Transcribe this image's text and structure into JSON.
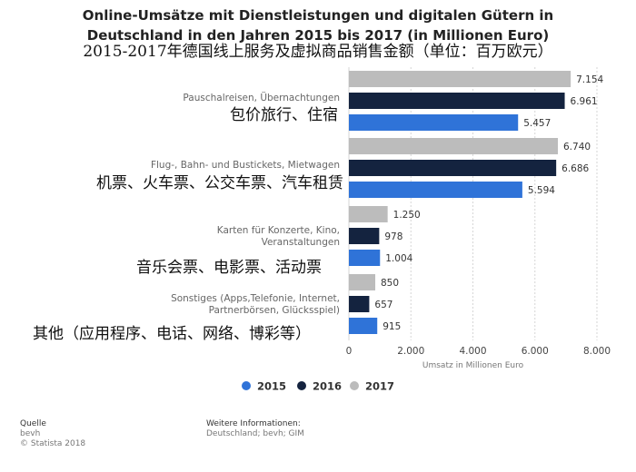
{
  "title": {
    "line1": "Online-Umsätze mit Dienstleistungen und digitalen Gütern in",
    "line2": "Deutschland in den Jahren 2015 bis 2017 (in Millionen Euro)",
    "chinese": "2015-2017年德国线上服务及虚拟商品销售金额（单位：百万欧元）"
  },
  "chart_data": {
    "type": "bar",
    "orientation": "horizontal",
    "categories": [
      "Pauschalreisen, Übernachtungen",
      "Flug-, Bahn- und Bustickets, Mietwagen",
      "Karten für Konzerte, Kino, Veranstaltungen",
      "Sonstiges (Apps,Telefonie, Internet, Partnerbörsen, Glücksspiel)"
    ],
    "category_label_lines": [
      [
        "Pauschalreisen, Übernachtungen"
      ],
      [
        "Flug-, Bahn- und Bustickets, Mietwagen"
      ],
      [
        "Karten für Konzerte, Kino,",
        "Veranstaltungen"
      ],
      [
        "Sonstiges (Apps,Telefonie, Internet,",
        "Partnerbörsen, Glücksspiel)"
      ]
    ],
    "category_translations": [
      "包价旅行、住宿",
      "机票、火车票、公交车票、汽车租赁",
      "音乐会票、电影票、活动票",
      "其他（应用程序、电话、网络、博彩等）"
    ],
    "series": [
      {
        "name": "2017",
        "color": "#bcbcbc",
        "values": [
          7154,
          6740,
          1250,
          850
        ],
        "labels": [
          "7.154",
          "6.740",
          "1.250",
          "850"
        ]
      },
      {
        "name": "2016",
        "color": "#14233f",
        "values": [
          6961,
          6686,
          978,
          657
        ],
        "labels": [
          "6.961",
          "6.686",
          "978",
          "657"
        ]
      },
      {
        "name": "2015",
        "color": "#2f73d8",
        "values": [
          5457,
          5594,
          1004,
          915
        ],
        "labels": [
          "5.457",
          "5.594",
          "1.004",
          "915"
        ]
      }
    ],
    "xlim": [
      0,
      8000
    ],
    "xticks": [
      0,
      2000,
      4000,
      6000,
      8000
    ],
    "xtick_labels": [
      "0",
      "2.000",
      "4.000",
      "6.000",
      "8.000"
    ],
    "xlabel": "Umsatz in Millionen Euro",
    "grid": true,
    "legend": {
      "placement": "bottom",
      "order": [
        "2015",
        "2016",
        "2017"
      ]
    }
  },
  "footer": {
    "source_head": "Quelle",
    "source_line1": "bevh",
    "source_line2": "© Statista 2018",
    "info_head": "Weitere Informationen:",
    "info_line": "Deutschland; bevh; GIM"
  }
}
